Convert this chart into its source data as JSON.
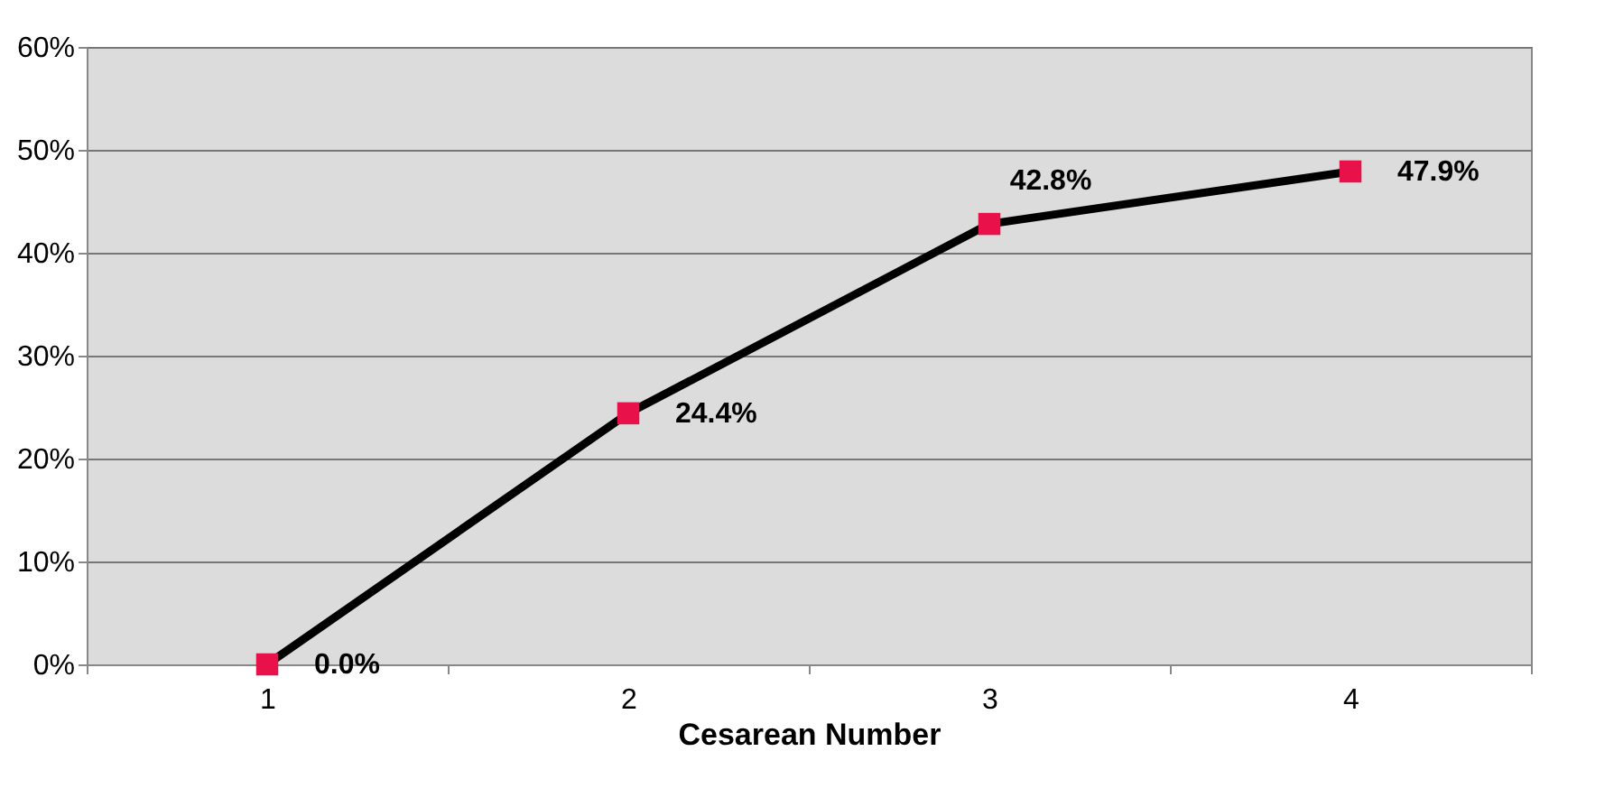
{
  "chart_data": {
    "type": "line",
    "xlabel": "Cesarean Number",
    "categories": [
      "1",
      "2",
      "3",
      "4"
    ],
    "series": [
      {
        "color": "#000000",
        "colors": [
          "#e8114a",
          "#e8114a",
          "#e8114a",
          "#e8114a"
        ],
        "values": [
          0,
          24.4,
          42.8,
          47.9
        ],
        "value_labels": [
          "0.0%",
          "24.4%",
          "42.8%",
          "47.9%"
        ]
      }
    ],
    "ylim": [
      0,
      60
    ],
    "yticks": [
      {
        "value": 0,
        "label": "0%"
      },
      {
        "value": 10,
        "label": "10%"
      },
      {
        "value": 20,
        "label": "20%"
      },
      {
        "value": 30,
        "label": "30%"
      },
      {
        "value": 40,
        "label": "40%"
      },
      {
        "value": 50,
        "label": "50%"
      },
      {
        "value": 60,
        "label": "60%"
      }
    ],
    "grid": "y",
    "marker": "square",
    "line_style": "solid"
  }
}
